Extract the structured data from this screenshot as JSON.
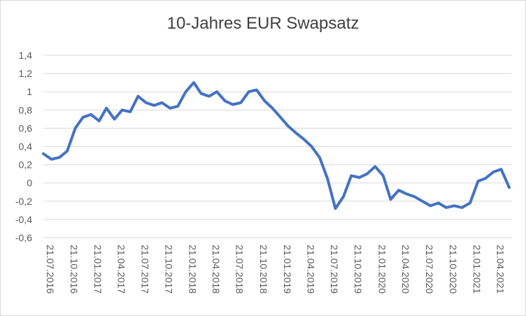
{
  "chart_data": {
    "type": "line",
    "title": "10-Jahres EUR Swapsatz",
    "xlabel": "",
    "ylabel": "",
    "ylim": [
      -0.6,
      1.4
    ],
    "yticks": [
      "1,4",
      "1,2",
      "1",
      "0,8",
      "0,6",
      "0,4",
      "0,2",
      "0",
      "-0,2",
      "-0,4",
      "-0,6"
    ],
    "x_tick_labels": [
      "21.07.2016",
      "21.10.2016",
      "21.01.2017",
      "21.04.2017",
      "21.07.2017",
      "21.10.2017",
      "21.01.2018",
      "21.04.2018",
      "21.07.2018",
      "21.10.2018",
      "21.01.2019",
      "21.04.2019",
      "21.07.2019",
      "21.10.2019",
      "21.01.2020",
      "21.04.2020",
      "21.07.2020",
      "21.10.2020",
      "21.01.2021",
      "21.04.2021"
    ],
    "grid": "horizontal",
    "line_color": "#4472c4",
    "series": [
      {
        "x": [
          "21.07.2016",
          "21.08.2016",
          "21.09.2016",
          "21.10.2016",
          "21.11.2016",
          "21.12.2016",
          "21.01.2017",
          "21.02.2017",
          "21.03.2017",
          "21.04.2017",
          "21.05.2017",
          "21.06.2017",
          "21.07.2017",
          "21.08.2017",
          "21.09.2017",
          "21.10.2017",
          "21.11.2017",
          "21.12.2017",
          "21.01.2018",
          "21.02.2018",
          "21.03.2018",
          "21.04.2018",
          "21.05.2018",
          "21.06.2018",
          "21.07.2018",
          "21.08.2018",
          "21.09.2018",
          "21.10.2018",
          "21.11.2018",
          "21.12.2018",
          "21.01.2019",
          "21.02.2019",
          "21.03.2019",
          "21.04.2019",
          "21.05.2019",
          "21.06.2019",
          "21.07.2019",
          "21.08.2019",
          "21.09.2019",
          "21.10.2019",
          "21.11.2019",
          "21.12.2019",
          "21.01.2020",
          "21.02.2020",
          "21.03.2020",
          "21.04.2020",
          "21.05.2020",
          "21.06.2020",
          "21.07.2020",
          "21.08.2020",
          "21.09.2020",
          "21.10.2020",
          "21.11.2020",
          "21.12.2020",
          "21.01.2021",
          "21.02.2021",
          "21.03.2021",
          "21.04.2021",
          "21.05.2021",
          "21.06.2021"
        ],
        "values": [
          0.32,
          0.26,
          0.28,
          0.35,
          0.6,
          0.72,
          0.75,
          0.68,
          0.82,
          0.7,
          0.8,
          0.78,
          0.95,
          0.88,
          0.85,
          0.88,
          0.82,
          0.84,
          1.0,
          1.1,
          0.98,
          0.95,
          1.0,
          0.9,
          0.86,
          0.88,
          1.0,
          1.02,
          0.9,
          0.82,
          0.72,
          0.62,
          0.55,
          0.48,
          0.4,
          0.28,
          0.05,
          -0.28,
          -0.15,
          0.08,
          0.06,
          0.1,
          0.18,
          0.08,
          -0.18,
          -0.08,
          -0.12,
          -0.15,
          -0.2,
          -0.25,
          -0.22,
          -0.27,
          -0.25,
          -0.27,
          -0.22,
          0.02,
          0.05,
          0.12,
          0.15,
          -0.05
        ]
      }
    ]
  }
}
